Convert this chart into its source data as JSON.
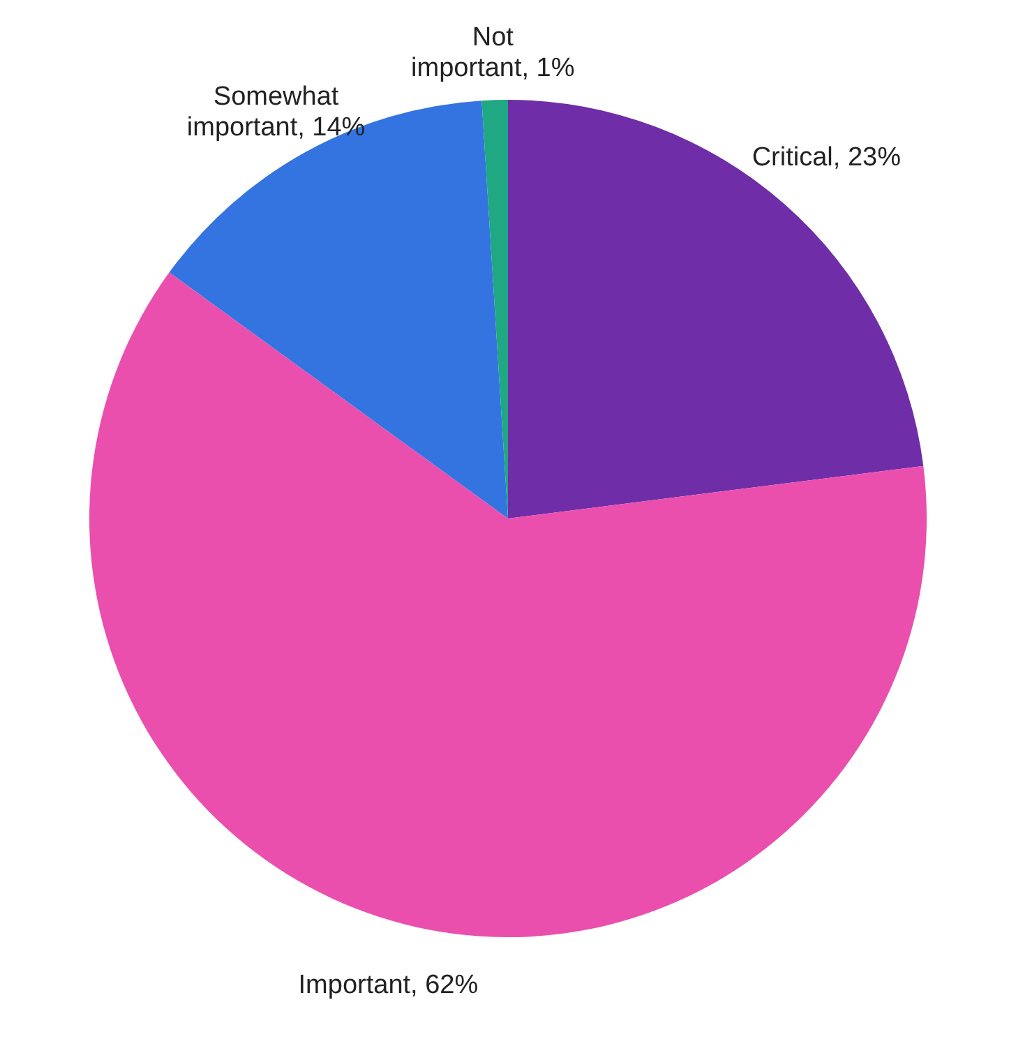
{
  "chart_data": {
    "type": "pie",
    "categories": [
      "Critical",
      "Important",
      "Somewhat important",
      "Not important"
    ],
    "values": [
      23,
      62,
      14,
      1
    ],
    "value_labels": [
      "23%",
      "62%",
      "14%",
      "1%"
    ],
    "colors": [
      "#6f2da8",
      "#eb4fae",
      "#3474e0",
      "#1fa882"
    ]
  }
}
